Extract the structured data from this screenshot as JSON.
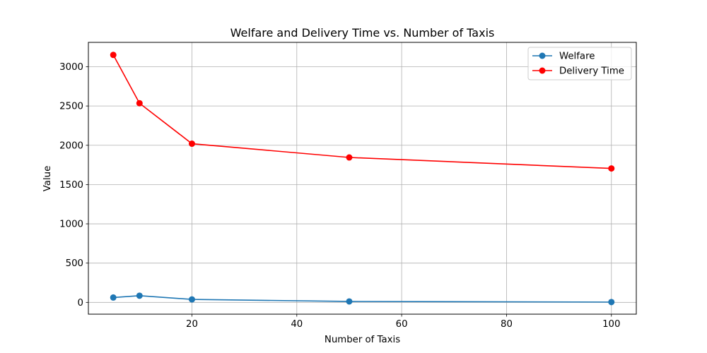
{
  "chart_data": {
    "type": "line",
    "title": "Welfare and Delivery Time vs. Number of Taxis",
    "xlabel": "Number of Taxis",
    "ylabel": "Value",
    "xlim": [
      0.25,
      104.75
    ],
    "ylim": [
      -150,
      3310
    ],
    "xticks": [
      20,
      40,
      60,
      80,
      100
    ],
    "yticks": [
      0,
      500,
      1000,
      1500,
      2000,
      2500,
      3000
    ],
    "grid": true,
    "legend_position": "top-right",
    "x": [
      5,
      10,
      20,
      50,
      100
    ],
    "series": [
      {
        "name": "Welfare",
        "color": "#1f77b4",
        "marker": "circle",
        "values": [
          62,
          85,
          38,
          12,
          4
        ]
      },
      {
        "name": "Delivery Time",
        "color": "#ff0000",
        "marker": "circle",
        "values": [
          3150,
          2535,
          2020,
          1845,
          1705
        ]
      }
    ]
  }
}
